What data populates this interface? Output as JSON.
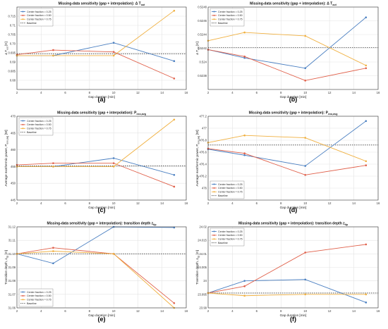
{
  "figure": {
    "panel_labels": [
      "(a)",
      "(b)",
      "(c)",
      "(d)",
      "(e)",
      "(f)"
    ]
  },
  "chart_data": [
    {
      "type": "line",
      "label": "(a)",
      "title": "Missing-data sensitivity (gap + interpolation): Δ T",
      "title_sub": "out",
      "xlabel": "Gap duration [min]",
      "ylabel": "Δ T",
      "ylabel_sub": "out",
      "ylabel_unit": " [K]",
      "xlim": [
        2,
        16
      ],
      "ylim": [
        0.675,
        0.72
      ],
      "xticks": [
        2,
        4,
        6,
        8,
        10,
        12,
        14,
        16
      ],
      "yticks": [
        0.68,
        0.685,
        0.69,
        0.695,
        0.7,
        0.705,
        0.71,
        0.715
      ],
      "ytick_labels": [
        "0.68",
        "0.685",
        "0.69",
        "0.695",
        "0.70",
        "0.705",
        "0.71",
        "0.715"
      ],
      "x": [
        2,
        5,
        10,
        15
      ],
      "series": [
        {
          "name": "Center fraction = 0.25",
          "values": [
            0.6935,
            0.6935,
            0.7005,
            0.6905
          ],
          "color": "#4a7fc1"
        },
        {
          "name": "Center fraction = 0.50",
          "values": [
            0.694,
            0.6965,
            0.6955,
            0.681
          ],
          "color": "#e0604a"
        },
        {
          "name": "Center fraction = 0.75",
          "values": [
            0.6935,
            0.6935,
            0.6935,
            0.718
          ],
          "color": "#f0b040"
        }
      ],
      "baseline": {
        "name": "Baseline",
        "value": 0.6945
      },
      "legend": "top-left"
    },
    {
      "type": "line",
      "label": "(b)",
      "title": "Missing-data sensitivity (gap + interpolation): Δ T",
      "title_sub": "out",
      "xlabel": "Gap duration [min]",
      "ylabel": "Δ T",
      "ylabel_sub": "out",
      "ylabel_unit": " [K]",
      "xlim": [
        2,
        16
      ],
      "ylim": [
        0.5236,
        0.5248
      ],
      "xticks": [
        2,
        4,
        6,
        8,
        10,
        12,
        14,
        16
      ],
      "yticks": [
        0.5238,
        0.524,
        0.5242,
        0.5244,
        0.5246,
        0.5248
      ],
      "ytick_labels": [
        "0.5238",
        "0.524",
        "0.5242",
        "0.5244",
        "0.5246",
        "0.5248"
      ],
      "x": [
        2,
        5,
        10,
        15
      ],
      "series": [
        {
          "name": "Center fraction = 0.25",
          "values": [
            0.52418,
            0.52406,
            0.52391,
            0.52465
          ],
          "color": "#4a7fc1"
        },
        {
          "name": "Center fraction = 0.50",
          "values": [
            0.52418,
            0.52408,
            0.52373,
            0.52391
          ],
          "color": "#e0604a"
        },
        {
          "name": "Center fraction = 0.75",
          "values": [
            0.52431,
            0.52443,
            0.52438,
            0.52395
          ],
          "color": "#f0b040"
        }
      ],
      "baseline": {
        "name": "Baseline",
        "value": 0.52421
      },
      "legend": "top-left"
    },
    {
      "type": "line",
      "label": "(c)",
      "title": "Missing-data sensitivity (gap + interpolation): P",
      "title_sub": "exo,avg",
      "xlabel": "Gap duration [min]",
      "ylabel": "Average exothermic power, P",
      "ylabel_sub": "exo,avg",
      "ylabel_unit": " [W]",
      "xlim": [
        2,
        16
      ],
      "ylim": [
        445,
        470
      ],
      "xticks": [
        2,
        4,
        6,
        8,
        10,
        12,
        14,
        16
      ],
      "yticks": [
        445,
        450,
        455,
        460,
        465,
        470
      ],
      "ytick_labels": [
        "445",
        "450",
        "455",
        "460",
        "465",
        "470"
      ],
      "x": [
        2,
        5,
        10,
        15
      ],
      "series": [
        {
          "name": "Center fraction = 0.25",
          "values": [
            455.0,
            455.0,
            457.5,
            452.5
          ],
          "color": "#4a7fc1"
        },
        {
          "name": "Center fraction = 0.50",
          "values": [
            455.5,
            456.0,
            456.0,
            449.0
          ],
          "color": "#e0604a"
        },
        {
          "name": "Center fraction = 0.75",
          "values": [
            455.0,
            455.0,
            455.0,
            469.0
          ],
          "color": "#f0b040"
        }
      ],
      "baseline": {
        "name": "Baseline",
        "value": 455.2
      },
      "legend": "top-left"
    },
    {
      "type": "line",
      "label": "(d)",
      "title": "Missing-data sensitivity (gap + interpolation): P",
      "title_sub": "exo,avg",
      "xlabel": "Gap duration [min]",
      "ylabel": "Average exothermic power, P",
      "ylabel_sub": "exo,avg",
      "ylabel_unit": " [W]",
      "xlim": [
        2,
        16
      ],
      "ylim": [
        475.8,
        477.2
      ],
      "xticks": [
        2,
        4,
        6,
        8,
        10,
        12,
        14,
        16
      ],
      "yticks": [
        476,
        476.2,
        476.4,
        476.6,
        476.8,
        477,
        477.2
      ],
      "ytick_labels": [
        "476",
        "476.2",
        "476.4",
        "476.6",
        "476.8",
        "477",
        "477.2"
      ],
      "x": [
        2,
        5,
        10,
        15
      ],
      "series": [
        {
          "name": "Center fraction = 0.25",
          "values": [
            476.65,
            476.55,
            476.37,
            477.12
          ],
          "color": "#4a7fc1"
        },
        {
          "name": "Center fraction = 0.50",
          "values": [
            476.66,
            476.58,
            476.22,
            476.38
          ],
          "color": "#e0604a"
        },
        {
          "name": "Center fraction = 0.75",
          "values": [
            476.76,
            476.88,
            476.84,
            476.45
          ],
          "color": "#f0b040"
        }
      ],
      "baseline": {
        "name": "Baseline",
        "value": 476.72
      },
      "legend": "bottom-left"
    },
    {
      "type": "line",
      "label": "(e)",
      "title": "Missing-data sensitivity (gap + interpolation): transition depth z",
      "title_sub": "tip",
      "xlabel": "Gap duration [min]",
      "ylabel": "Transition depth, z",
      "ylabel_sub": "tip",
      "ylabel_unit": " [m]",
      "xlim": [
        2,
        16
      ],
      "ylim": [
        31.06,
        31.12
      ],
      "xticks": [
        2,
        4,
        6,
        8,
        10,
        12,
        14,
        16
      ],
      "yticks": [
        31.06,
        31.07,
        31.08,
        31.09,
        31.1,
        31.11,
        31.12
      ],
      "ytick_labels": [
        "31.06",
        "31.07",
        "31.08",
        "31.09",
        "31.10",
        "31.11",
        "31.12"
      ],
      "x": [
        2,
        5,
        10,
        15
      ],
      "series": [
        {
          "name": "Center fraction = 0.25",
          "values": [
            31.1,
            31.093,
            31.12,
            31.1195
          ],
          "color": "#4a7fc1"
        },
        {
          "name": "Center fraction = 0.50",
          "values": [
            31.1,
            31.1045,
            31.1,
            31.0635
          ],
          "color": "#e0604a"
        },
        {
          "name": "Center fraction = 0.75",
          "values": [
            31.1,
            31.102,
            31.1,
            31.06
          ],
          "color": "#f0b040"
        }
      ],
      "baseline": {
        "name": "Baseline",
        "value": 31.1
      },
      "legend": "bottom-left"
    },
    {
      "type": "line",
      "label": "(f)",
      "title": "Missing-data sensitivity (gap + interpolation): transition depth z",
      "title_sub": "tip",
      "xlabel": "Gap duration [min]",
      "ylabel": "Transition depth, z",
      "ylabel_sub": "tip",
      "ylabel_unit": " [m]",
      "xlim": [
        2,
        16
      ],
      "ylim": [
        23.99,
        24.02
      ],
      "xticks": [
        2,
        4,
        6,
        8,
        10,
        12,
        14,
        16
      ],
      "yticks": [
        23.99,
        23.995,
        24,
        24.005,
        24.01,
        24.015,
        24.02
      ],
      "ytick_labels": [
        "23.99",
        "23.995",
        "24",
        "24.005",
        "24.01",
        "24.015",
        "24.02"
      ],
      "x": [
        2,
        5,
        10,
        15
      ],
      "series": [
        {
          "name": "Center fraction = 0.25",
          "values": [
            23.9955,
            24.0,
            24.0005,
            23.992
          ],
          "color": "#4a7fc1"
        },
        {
          "name": "Center fraction = 0.50",
          "values": [
            23.9955,
            23.998,
            24.0105,
            24.0135
          ],
          "color": "#e0604a"
        },
        {
          "name": "Center fraction = 0.75",
          "values": [
            23.9955,
            23.9945,
            23.995,
            23.995
          ],
          "color": "#f0b040"
        }
      ],
      "baseline": {
        "name": "Baseline",
        "value": 23.9955
      },
      "legend": "top-left"
    }
  ]
}
